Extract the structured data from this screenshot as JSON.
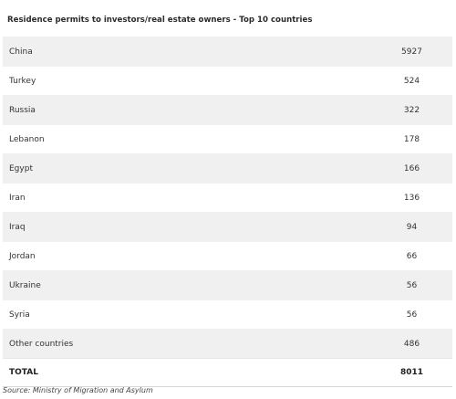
{
  "chart_data": {
    "type": "table",
    "title": "Residence permits to investors/real estate owners - Top 10 countries",
    "categories": [
      "China",
      "Turkey",
      "Russia",
      "Lebanon",
      "Egypt",
      "Iran",
      "Iraq",
      "Jordan",
      "Ukraine",
      "Syria",
      "Other countries"
    ],
    "values": [
      5927,
      524,
      322,
      178,
      166,
      136,
      94,
      66,
      56,
      56,
      486
    ],
    "total": {
      "label": "TOTAL",
      "value": "8011"
    },
    "source": "Source: Ministry of Migration and Asylum"
  },
  "colors": {
    "row_shaded": "#f0f0f0",
    "row_plain": "#ffffff",
    "text": "#333333"
  }
}
